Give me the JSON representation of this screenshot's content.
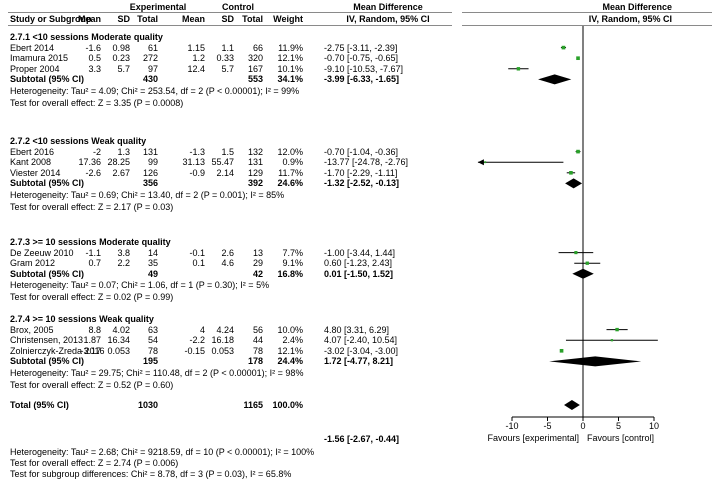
{
  "colors": {
    "point": "#2aa12a",
    "ci": "#000000",
    "diamond": "#000000",
    "header_rule": "#8a8a8a"
  },
  "headers": {
    "experimental": "Experimental",
    "control": "Control",
    "md_left": "Mean Difference",
    "md_right": "Mean Difference",
    "study": "Study or Subgroup",
    "mean_e": "Mean",
    "sd_e": "SD",
    "total_e": "Total",
    "mean_c": "Mean",
    "sd_c": "SD",
    "total_c": "Total",
    "weight": "Weight",
    "method_left": "IV, Random, 95% CI",
    "method_right": "IV, Random, 95% CI"
  },
  "axis": {
    "ticks": [
      "-10",
      "-5",
      "0",
      "5",
      "10"
    ],
    "favours_left": "Favours [experimental]",
    "favours_right": "Favours [control]"
  },
  "chart_data": {
    "type": "forest",
    "xlim": [
      -14,
      12
    ],
    "null_line": 0,
    "subgroups": [
      {
        "title": "2.7.1 <10 sessions Moderate quality",
        "studies": [
          {
            "name": "Ebert 2014",
            "mean_e": "-1.6",
            "sd_e": "0.98",
            "total_e": "61",
            "mean_c": "1.15",
            "sd_c": "1.1",
            "total_c": "66",
            "weight": "11.9%",
            "ci_text": "-2.75 [-3.11, -2.39]",
            "md": -2.75,
            "lo": -3.11,
            "hi": -2.39,
            "w": 11.9
          },
          {
            "name": "Imamura 2015",
            "mean_e": "0.5",
            "sd_e": "0.23",
            "total_e": "272",
            "mean_c": "1.2",
            "sd_c": "0.33",
            "total_c": "320",
            "weight": "12.1%",
            "ci_text": "-0.70 [-0.75, -0.65]",
            "md": -0.7,
            "lo": -0.75,
            "hi": -0.65,
            "w": 12.1
          },
          {
            "name": "Proper 2004",
            "mean_e": "3.3",
            "sd_e": "5.7",
            "total_e": "97",
            "mean_c": "12.4",
            "sd_c": "5.7",
            "total_c": "167",
            "weight": "10.1%",
            "ci_text": "-9.10 [-10.53, -7.67]",
            "md": -9.1,
            "lo": -10.53,
            "hi": -7.67,
            "w": 10.1
          }
        ],
        "subtotal": {
          "label": "Subtotal (95% CI)",
          "total_e": "430",
          "total_c": "553",
          "weight": "34.1%",
          "ci_text": "-3.99 [-6.33, -1.65]",
          "md": -3.99,
          "lo": -6.33,
          "hi": -1.65
        },
        "heterogeneity": "Heterogeneity: Tau² = 4.09; Chi² = 253.54, df = 2 (P < 0.00001); I² = 99%",
        "overall": "Test for overall effect: Z = 3.35 (P = 0.0008)"
      },
      {
        "title": "2.7.2 <10 sessions Weak quality",
        "studies": [
          {
            "name": "Ebert 2016",
            "mean_e": "-2",
            "sd_e": "1.3",
            "total_e": "131",
            "mean_c": "-1.3",
            "sd_c": "1.5",
            "total_c": "132",
            "weight": "12.0%",
            "ci_text": "-0.70 [-1.04, -0.36]",
            "md": -0.7,
            "lo": -1.04,
            "hi": -0.36,
            "w": 12.0
          },
          {
            "name": "Kant 2008",
            "mean_e": "17.36",
            "sd_e": "28.25",
            "total_e": "99",
            "mean_c": "31.13",
            "sd_c": "55.47",
            "total_c": "131",
            "weight": "0.9%",
            "ci_text": "-13.77 [-24.78, -2.76]",
            "md": -13.77,
            "lo": -24.78,
            "hi": -2.76,
            "w": 0.9
          },
          {
            "name": "Viester 2014",
            "mean_e": "-2.6",
            "sd_e": "2.67",
            "total_e": "126",
            "mean_c": "-0.9",
            "sd_c": "2.14",
            "total_c": "129",
            "weight": "11.7%",
            "ci_text": "-1.70 [-2.29, -1.11]",
            "md": -1.7,
            "lo": -2.29,
            "hi": -1.11,
            "w": 11.7
          }
        ],
        "subtotal": {
          "label": "Subtotal (95% CI)",
          "total_e": "356",
          "total_c": "392",
          "weight": "24.6%",
          "ci_text": "-1.32 [-2.52, -0.13]",
          "md": -1.32,
          "lo": -2.52,
          "hi": -0.13
        },
        "heterogeneity": "Heterogeneity: Tau² = 0.69; Chi² = 13.40, df = 2 (P = 0.001); I² = 85%",
        "overall": "Test for overall effect: Z = 2.17 (P = 0.03)"
      },
      {
        "title": "2.7.3 >= 10 sessions Moderate quality",
        "studies": [
          {
            "name": "De Zeeuw 2010",
            "mean_e": "-1.1",
            "sd_e": "3.8",
            "total_e": "14",
            "mean_c": "-0.1",
            "sd_c": "2.6",
            "total_c": "13",
            "weight": "7.7%",
            "ci_text": "-1.00 [-3.44, 1.44]",
            "md": -1.0,
            "lo": -3.44,
            "hi": 1.44,
            "w": 7.7
          },
          {
            "name": "Gram 2012",
            "mean_e": "0.7",
            "sd_e": "2.2",
            "total_e": "35",
            "mean_c": "0.1",
            "sd_c": "4.6",
            "total_c": "29",
            "weight": "9.1%",
            "ci_text": "0.60 [-1.23, 2.43]",
            "md": 0.6,
            "lo": -1.23,
            "hi": 2.43,
            "w": 9.1
          }
        ],
        "subtotal": {
          "label": "Subtotal (95% CI)",
          "total_e": "49",
          "total_c": "42",
          "weight": "16.8%",
          "ci_text": "0.01 [-1.50, 1.52]",
          "md": 0.01,
          "lo": -1.5,
          "hi": 1.52
        },
        "heterogeneity": "Heterogeneity: Tau² = 0.07; Chi² = 1.06, df = 1 (P = 0.30); I² = 5%",
        "overall": "Test for overall effect: Z = 0.02 (P = 0.99)"
      },
      {
        "title": "2.7.4 >= 10 sessions Weak quality",
        "studies": [
          {
            "name": "Brox, 2005",
            "mean_e": "8.8",
            "sd_e": "4.02",
            "total_e": "63",
            "mean_c": "4",
            "sd_c": "4.24",
            "total_c": "56",
            "weight": "10.0%",
            "ci_text": "4.80 [3.31, 6.29]",
            "md": 4.8,
            "lo": 3.31,
            "hi": 6.29,
            "w": 10.0
          },
          {
            "name": "Christensen, 2013",
            "mean_e": "1.87",
            "sd_e": "16.34",
            "total_e": "54",
            "mean_c": "-2.2",
            "sd_c": "16.18",
            "total_c": "44",
            "weight": "2.4%",
            "ci_text": "4.07 [-2.40, 10.54]",
            "md": 4.07,
            "lo": -2.4,
            "hi": 10.54,
            "w": 2.4
          },
          {
            "name": "Zolnierczyk-Zreda 2016",
            "mean_e": "-3.17",
            "sd_e": "0.053",
            "total_e": "78",
            "mean_c": "-0.15",
            "sd_c": "0.053",
            "total_c": "78",
            "weight": "12.1%",
            "ci_text": "-3.02 [-3.04, -3.00]",
            "md": -3.02,
            "lo": -3.04,
            "hi": -3.0,
            "w": 12.1
          }
        ],
        "subtotal": {
          "label": "Subtotal (95% CI)",
          "total_e": "195",
          "total_c": "178",
          "weight": "24.4%",
          "ci_text": "1.72 [-4.77, 8.21]",
          "md": 1.72,
          "lo": -4.77,
          "hi": 8.21
        },
        "heterogeneity": "Heterogeneity: Tau² = 29.75; Chi² = 110.48, df = 2 (P < 0.00001); I² = 98%",
        "overall": "Test for overall effect: Z = 0.52 (P = 0.60)"
      }
    ],
    "total": {
      "label": "Total (95% CI)",
      "total_e": "1030",
      "total_c": "1165",
      "weight": "100.0%",
      "ci_text": "-1.56 [-2.67, -0.44]",
      "md": -1.56,
      "lo": -2.67,
      "hi": -0.44
    },
    "total_heterogeneity": "Heterogeneity: Tau² = 2.68; Chi² = 9218.59, df = 10 (P < 0.00001); I² = 100%",
    "total_overall": "Test for overall effect: Z = 2.74 (P = 0.006)",
    "subgroup_differences": "Test for subgroup differences: Chi² = 8.78, df = 3 (P = 0.03), I² = 65.8%"
  }
}
